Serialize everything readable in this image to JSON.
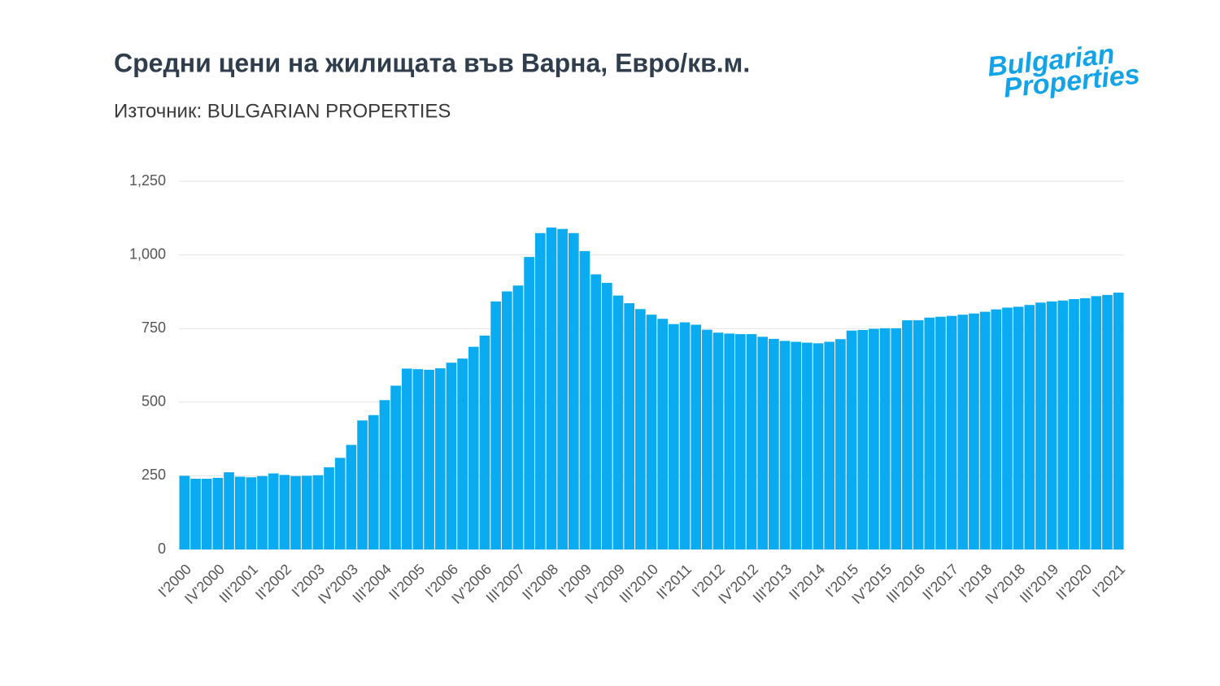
{
  "chart_data": {
    "type": "bar",
    "title": "Средни цени на жилищата във Варна, Евро/кв.м.",
    "subtitle": "Източник: BULGARIAN PROPERTIES",
    "logo": [
      "Bulgarian",
      "Properties"
    ],
    "color": "#0aabf0",
    "grid": true,
    "ylim": [
      0,
      1250
    ],
    "yticks": [
      0,
      250,
      500,
      750,
      {
        "value": 1000,
        "label": "1,000"
      },
      {
        "value": 1250,
        "label": "1,250"
      }
    ],
    "categories": [
      "I'2000",
      null,
      null,
      "IV'2000",
      null,
      null,
      "III'2001",
      null,
      null,
      "II'2002",
      null,
      null,
      "I'2003",
      null,
      null,
      "IV'2003",
      null,
      null,
      "III'2004",
      null,
      null,
      "II'2005",
      null,
      null,
      "I'2006",
      null,
      null,
      "IV'2006",
      null,
      null,
      "III'2007",
      null,
      null,
      "II'2008",
      null,
      null,
      "I'2009",
      null,
      null,
      "IV'2009",
      null,
      null,
      "III'2010",
      null,
      null,
      "II'2011",
      null,
      null,
      "I'2012",
      null,
      null,
      "IV'2012",
      null,
      null,
      "III'2013",
      null,
      null,
      "II'2014",
      null,
      null,
      "I'2015",
      null,
      null,
      "IV'2015",
      null,
      null,
      "III'2016",
      null,
      null,
      "II'2017",
      null,
      null,
      "I'2018",
      null,
      null,
      "IV'2018",
      null,
      null,
      "III'2019",
      null,
      null,
      "II'2020",
      null,
      null,
      "I'2021"
    ],
    "values": [
      250,
      240,
      240,
      243,
      262,
      247,
      245,
      249,
      258,
      253,
      249,
      250,
      252,
      279,
      311,
      355,
      438,
      456,
      507,
      556,
      614,
      612,
      610,
      615,
      634,
      648,
      688,
      726,
      842,
      876,
      896,
      993,
      1074,
      1093,
      1088,
      1074,
      1013,
      934,
      905,
      862,
      836,
      816,
      797,
      783,
      765,
      771,
      763,
      746,
      736,
      733,
      731,
      731,
      722,
      715,
      708,
      705,
      702,
      700,
      705,
      714,
      743,
      745,
      749,
      751,
      751,
      778,
      778,
      787,
      790,
      793,
      797,
      801,
      807,
      815,
      821,
      824,
      830,
      838,
      842,
      845,
      850,
      853,
      860,
      864,
      872
    ]
  }
}
